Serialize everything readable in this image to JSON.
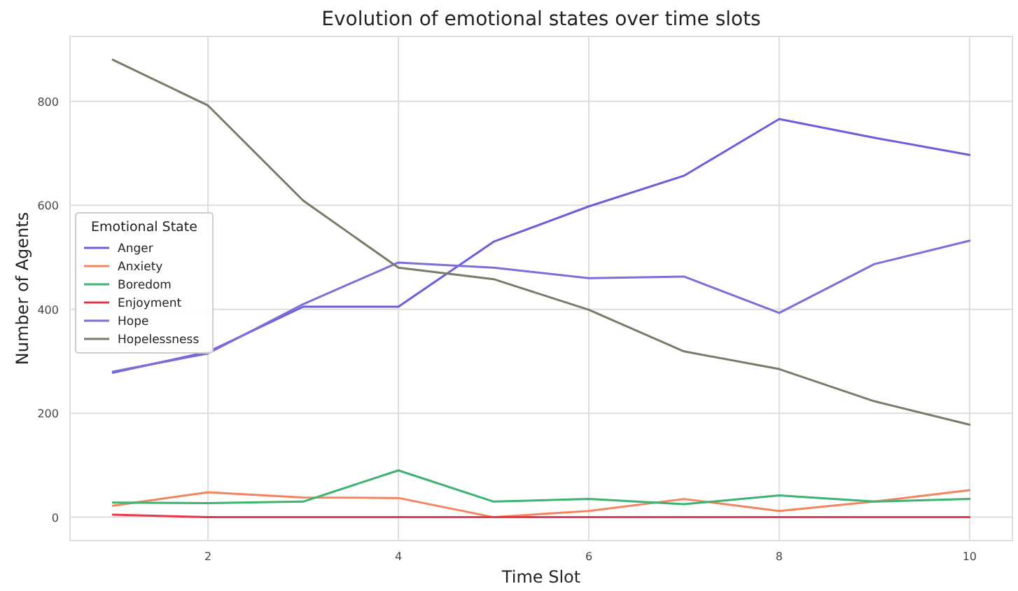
{
  "chart_data": {
    "type": "line",
    "title": "Evolution of emotional states over time slots",
    "xlabel": "Time Slot",
    "ylabel": "Number of Agents",
    "legend_title": "Emotional State",
    "legend": "left",
    "grid": true,
    "x": [
      1,
      2,
      3,
      4,
      5,
      6,
      7,
      8,
      9,
      10
    ],
    "xlim": [
      0.55,
      10.45
    ],
    "xticks": [
      2,
      4,
      6,
      8,
      10
    ],
    "ylim": [
      -45,
      925
    ],
    "yticks": [
      0,
      200,
      400,
      600,
      800
    ],
    "series": [
      {
        "name": "Anger",
        "color": "#6a5fd8",
        "values": [
          278,
          318,
          405,
          405,
          530,
          598,
          657,
          766,
          730,
          697
        ]
      },
      {
        "name": "Anxiety",
        "color": "#f4845f",
        "values": [
          22,
          48,
          38,
          37,
          0,
          12,
          35,
          12,
          30,
          52
        ]
      },
      {
        "name": "Boredom",
        "color": "#3cb371",
        "values": [
          28,
          27,
          30,
          90,
          30,
          35,
          25,
          42,
          30,
          35
        ]
      },
      {
        "name": "Enjoyment",
        "color": "#e8374a",
        "values": [
          5,
          0,
          0,
          0,
          0,
          0,
          0,
          0,
          0,
          0
        ]
      },
      {
        "name": "Hope",
        "color": "#7a6fd6",
        "values": [
          280,
          315,
          410,
          490,
          480,
          460,
          463,
          393,
          487,
          532
        ]
      },
      {
        "name": "Hopelessness",
        "color": "#7a7a68",
        "values": [
          880,
          792,
          609,
          480,
          458,
          399,
          319,
          285,
          223,
          178
        ]
      }
    ]
  }
}
